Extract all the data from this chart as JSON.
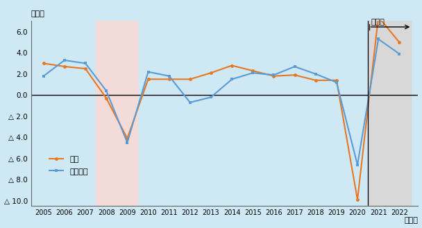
{
  "years": [
    2005,
    2006,
    2007,
    2008,
    2009,
    2010,
    2011,
    2012,
    2013,
    2014,
    2015,
    2016,
    2017,
    2018,
    2019,
    2020,
    2021,
    2022
  ],
  "uk": [
    3.0,
    2.7,
    2.5,
    -0.3,
    -4.1,
    1.5,
    1.5,
    1.5,
    2.1,
    2.8,
    2.3,
    1.8,
    1.9,
    1.4,
    1.4,
    -9.9,
    7.4,
    5.0
  ],
  "euro": [
    1.8,
    3.3,
    3.0,
    0.4,
    -4.5,
    2.2,
    1.8,
    -0.7,
    -0.2,
    1.5,
    2.1,
    1.9,
    2.7,
    2.0,
    1.2,
    -6.6,
    5.3,
    3.9
  ],
  "uk_color": "#e87722",
  "euro_color": "#5b9bd5",
  "background_color": "#cee8f4",
  "pink_shade_color": "#f2dbd8",
  "grey_shade_color": "#d8d8d8",
  "zero_line_color": "#000000",
  "title_y_label": "（％）",
  "xlabel": "（年）",
  "legend_uk": "英国",
  "legend_euro": "ユーロ圈",
  "forecast_label": "見通し",
  "ylim_min": -10.5,
  "ylim_max": 7.0,
  "yticks": [
    6.0,
    4.0,
    2.0,
    0.0,
    -2.0,
    -4.0,
    -6.0,
    -8.0,
    -10.0
  ],
  "ytick_labels": [
    "6.0",
    "4.0",
    "2.0",
    "0.0",
    "△ 2.0",
    "△ 4.0",
    "△ 6.0",
    "△ 8.0",
    "△ 10.0"
  ],
  "pink_region_start": 2007.5,
  "pink_region_end": 2009.5,
  "grey_region_start": 2020.5,
  "grey_region_end": 2022.55,
  "xlim_min": 2004.4,
  "xlim_max": 2022.9
}
